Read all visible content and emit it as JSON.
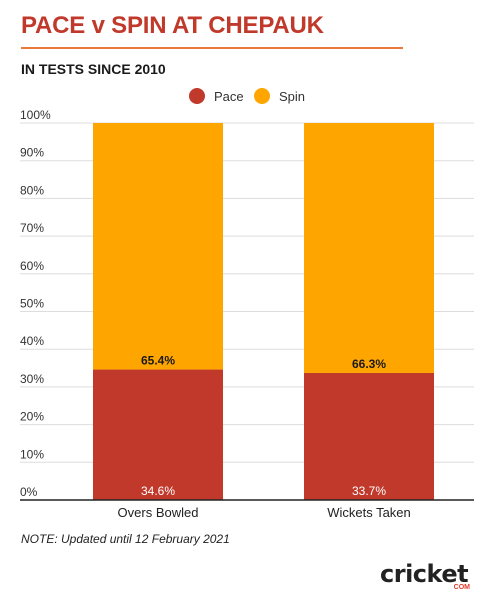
{
  "header": {
    "title": "PACE v SPIN AT CHEPAUK",
    "subtitle": "IN TESTS SINCE 2010"
  },
  "note": "NOTE: Updated until 12 February 2021",
  "logo": {
    "main": "cricket",
    "sub": "COM"
  },
  "colors": {
    "pace": "#c0392b",
    "spin": "#ffa500",
    "title": "#c0392b",
    "rule": "#e8793a",
    "grid": "#dddddd"
  },
  "chart_data": {
    "type": "bar",
    "stacked": true,
    "categories": [
      "Overs Bowled",
      "Wickets Taken"
    ],
    "series": [
      {
        "name": "Pace",
        "values": [
          34.6,
          33.7
        ],
        "labels": [
          "34.6%",
          "33.7%"
        ]
      },
      {
        "name": "Spin",
        "values": [
          65.4,
          66.3
        ],
        "labels": [
          "65.4%",
          "66.3%"
        ]
      }
    ],
    "ylim": [
      0,
      100
    ],
    "yticks": [
      "0%",
      "10%",
      "20%",
      "30%",
      "40%",
      "50%",
      "60%",
      "70%",
      "80%",
      "90%",
      "100%"
    ],
    "grid": true,
    "legend": "top-center"
  }
}
